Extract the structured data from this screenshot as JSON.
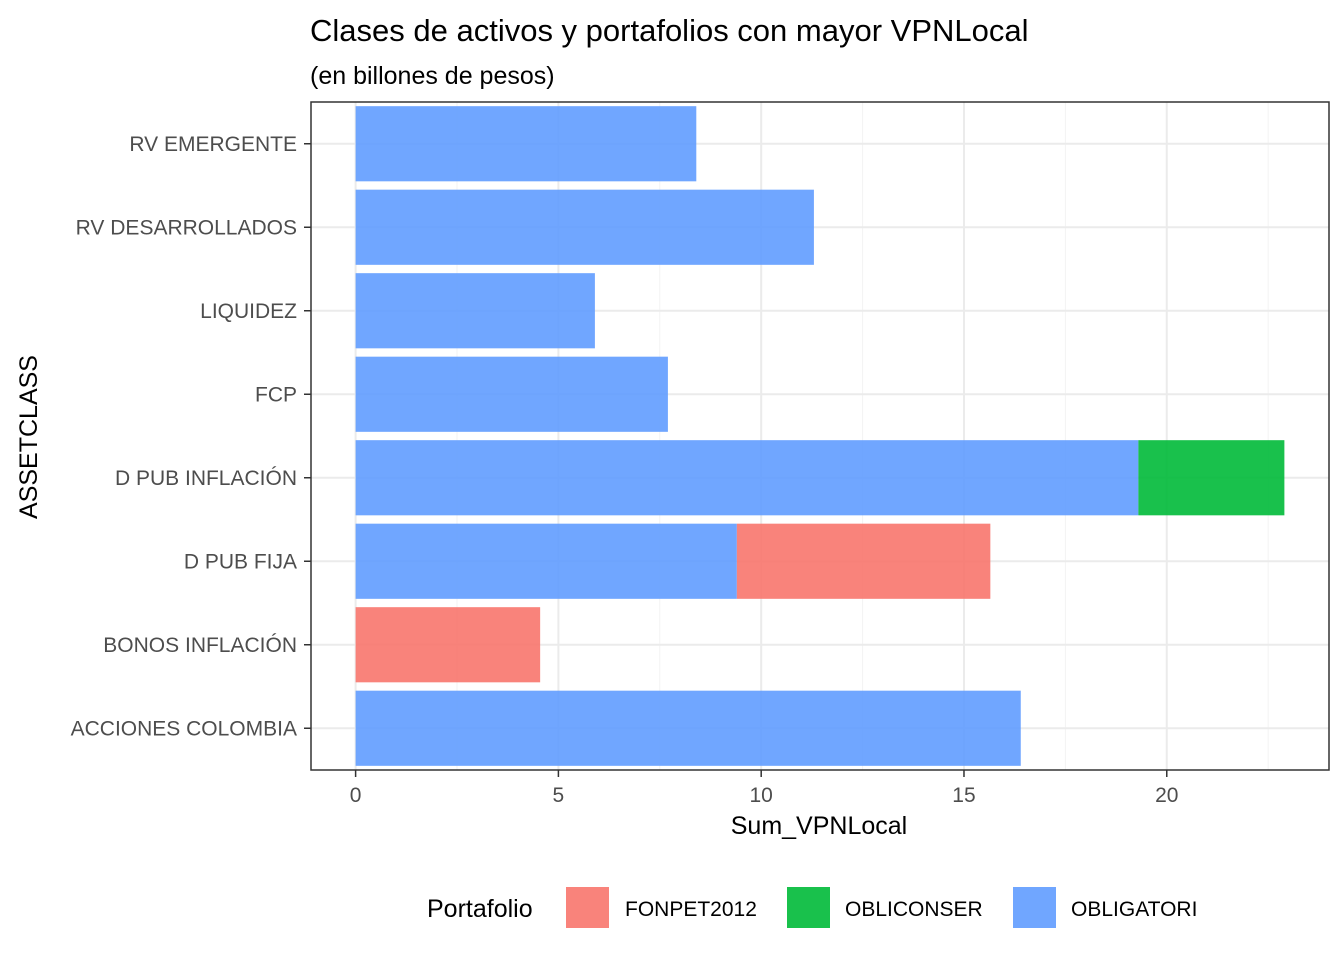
{
  "chart_data": {
    "type": "bar",
    "orientation": "horizontal",
    "stacked": true,
    "title": "Clases de activos y portafolios con mayor VPNLocal",
    "subtitle": "(en billones de pesos)",
    "xlabel": "Sum_VPNLocal",
    "ylabel": "ASSETCLASS",
    "xlim": [
      -1.1,
      24.0
    ],
    "xticks": [
      "0",
      "5",
      "10",
      "15",
      "20"
    ],
    "grid": true,
    "legend_position": "bottom",
    "legend_title": "Portafolio",
    "categories": [
      "ACCIONES COLOMBIA",
      "BONOS INFLACIÓN",
      "D PUB FIJA",
      "D PUB INFLACIÓN",
      "FCP",
      "LIQUIDEZ",
      "RV DESARROLLADOS",
      "RV EMERGENTE"
    ],
    "series": [
      {
        "name": "OBLIGATORI",
        "color": "#619CFF",
        "values": [
          16.4,
          0,
          9.4,
          19.3,
          7.7,
          5.9,
          11.3,
          8.4
        ]
      },
      {
        "name": "FONPET2012",
        "color": "#F8766D",
        "values": [
          0,
          4.55,
          6.25,
          0,
          0,
          0,
          0,
          0
        ]
      },
      {
        "name": "OBLICONSER",
        "color": "#00BA38",
        "values": [
          0,
          0,
          0,
          3.6,
          0,
          0,
          0,
          0
        ]
      }
    ],
    "legend_order": [
      "FONPET2012",
      "OBLICONSER",
      "OBLIGATORI"
    ]
  }
}
